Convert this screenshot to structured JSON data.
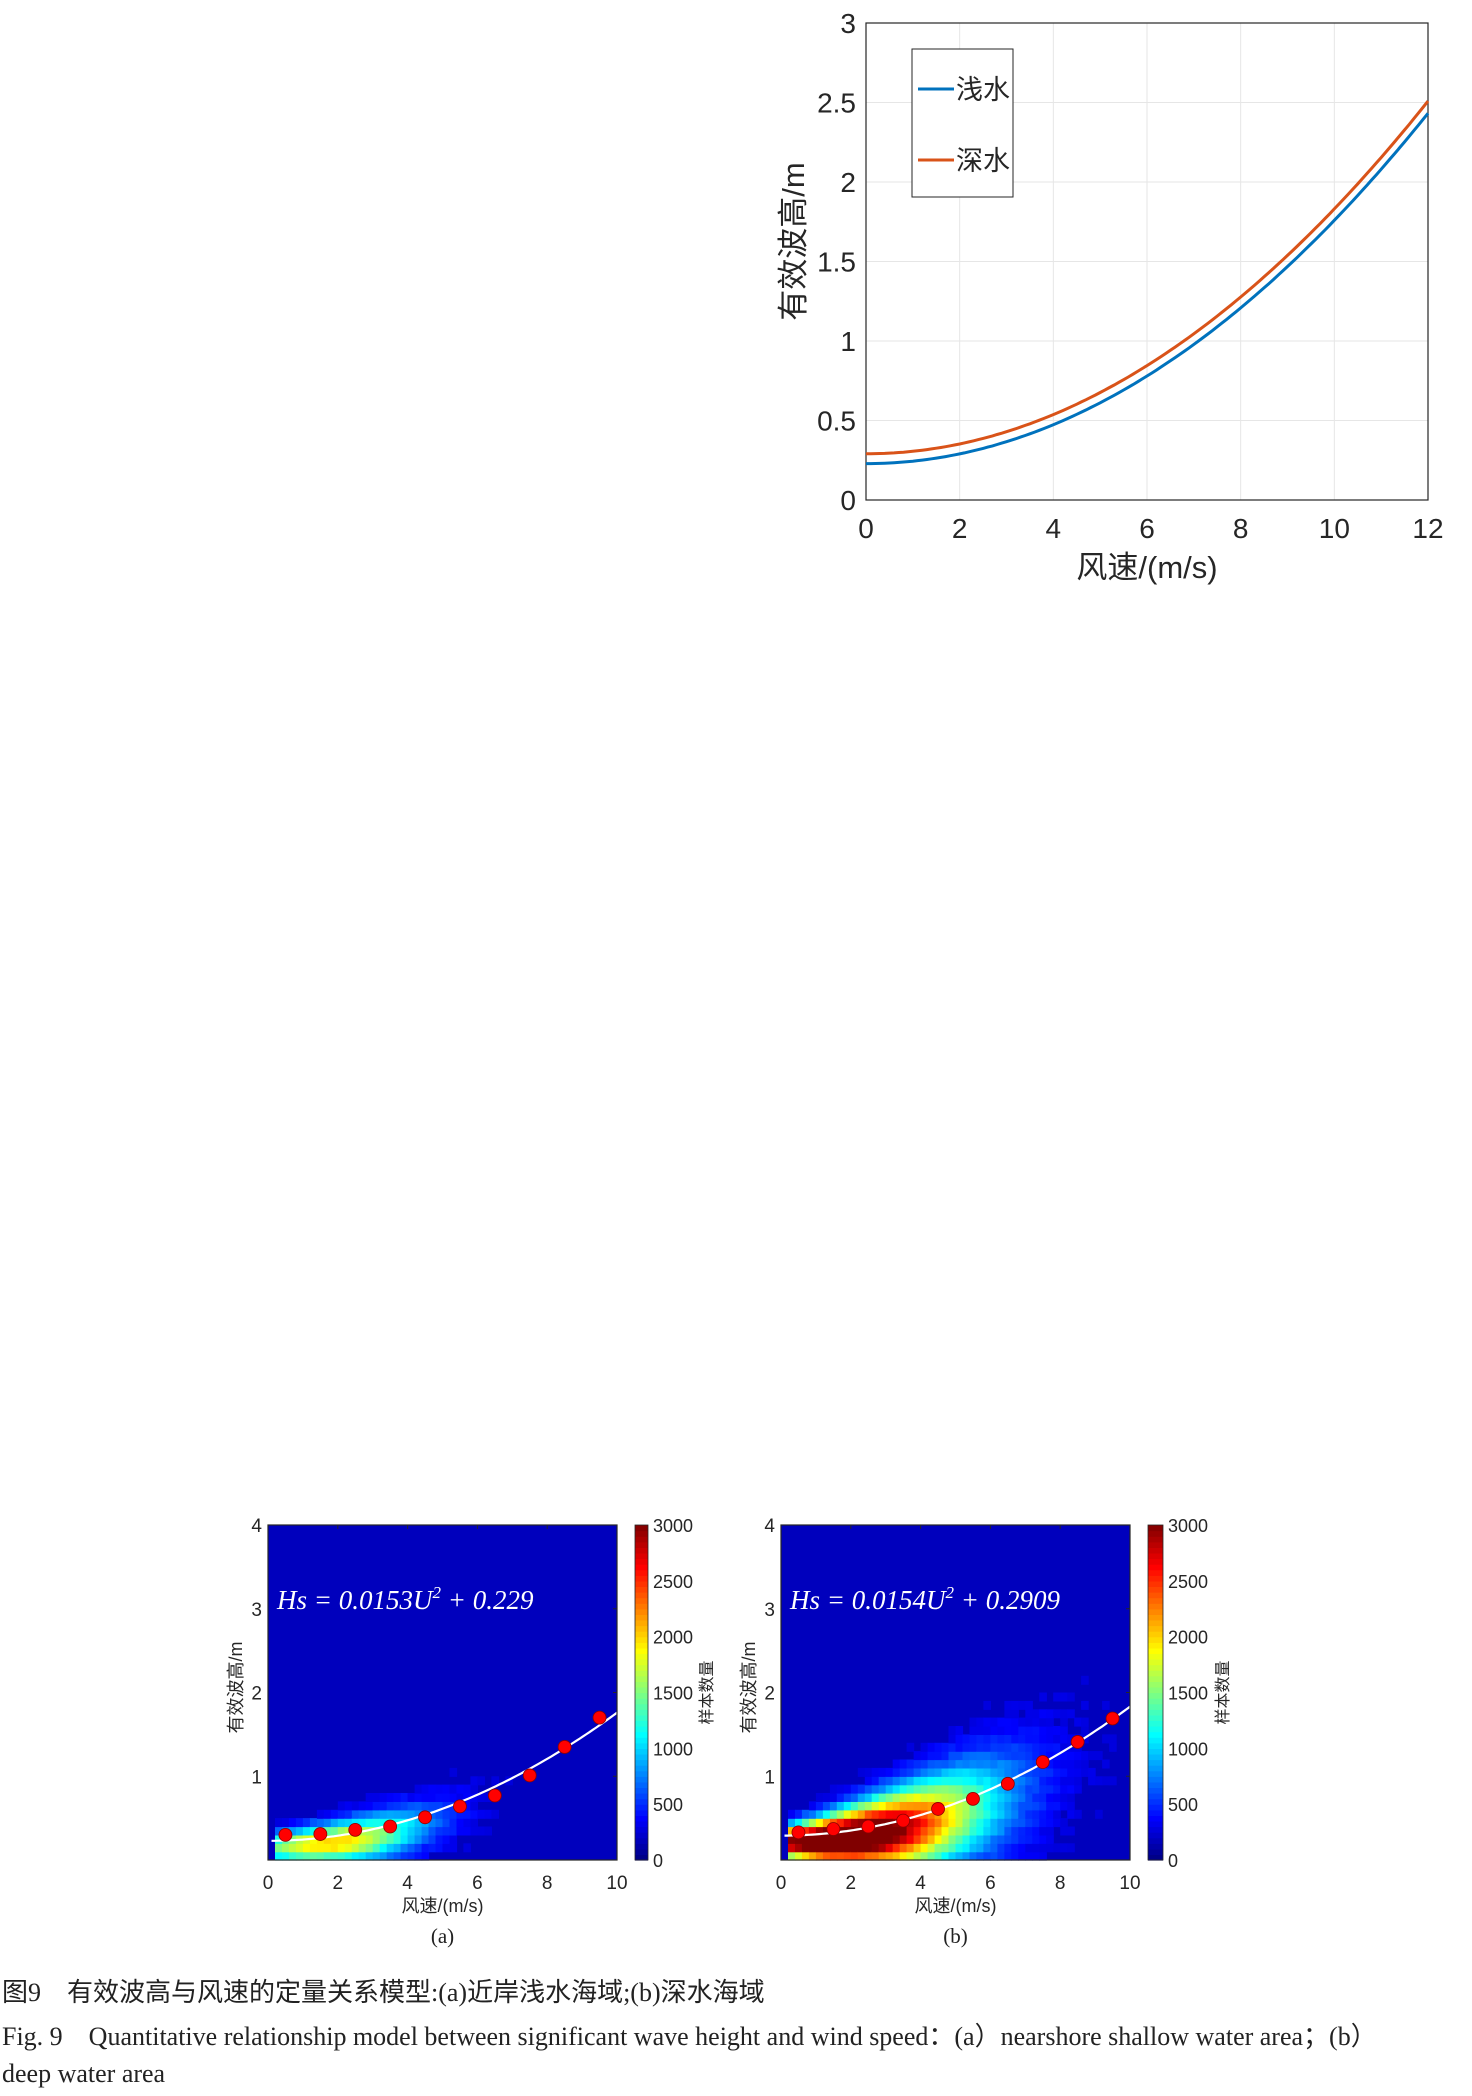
{
  "chart_data": [
    {
      "type": "line",
      "xlabel": "风速/(m/s)",
      "ylabel": "有效波高/m",
      "xlim": [
        0,
        12
      ],
      "ylim": [
        0,
        3
      ],
      "xticks": [
        "0",
        "2",
        "4",
        "6",
        "8",
        "10",
        "12"
      ],
      "yticks": [
        "0",
        "0.5",
        "1",
        "1.5",
        "2",
        "2.5",
        "3"
      ],
      "grid": true,
      "legend": "top-left",
      "series": [
        {
          "name": "浅水",
          "color": "#0072BD",
          "a": 0.0153,
          "b": 0.229,
          "x": [
            0,
            1,
            2,
            3,
            4,
            5,
            6,
            7,
            8,
            9,
            10,
            11,
            12
          ],
          "y": [
            0.229,
            0.244,
            0.29,
            0.367,
            0.474,
            0.612,
            0.78,
            0.979,
            1.208,
            1.468,
            1.759,
            2.08,
            2.432
          ]
        },
        {
          "name": "深水",
          "color": "#D95319",
          "a": 0.0154,
          "b": 0.2909,
          "x": [
            0,
            1,
            2,
            3,
            4,
            5,
            6,
            7,
            8,
            9,
            10,
            11,
            12
          ],
          "y": [
            0.291,
            0.306,
            0.352,
            0.43,
            0.537,
            0.676,
            0.845,
            1.046,
            1.277,
            1.538,
            1.831,
            2.154,
            2.509
          ]
        }
      ]
    },
    {
      "type": "heatmap",
      "panel": "(a)",
      "formula": {
        "lhs": "Hs = 0.0153U",
        "exp": "2",
        "rhs": " + 0.229"
      },
      "fit": {
        "a": 0.0153,
        "b": 0.229
      },
      "xlabel": "风速/(m/s)",
      "ylabel": "有效波高/m",
      "xlim": [
        0,
        10
      ],
      "ylim": [
        0,
        4
      ],
      "xticks": [
        "0",
        "2",
        "4",
        "6",
        "8",
        "10"
      ],
      "yticks": [
        "1",
        "2",
        "3",
        "4"
      ],
      "colorbar": {
        "label": "样本数量",
        "range": [
          0,
          3000
        ],
        "ticks": [
          "0",
          "500",
          "1000",
          "1500",
          "2000",
          "2500",
          "3000"
        ],
        "colormap": "jet"
      },
      "points": {
        "x": [
          0.5,
          1.5,
          2.5,
          3.5,
          4.5,
          5.5,
          6.5,
          7.5,
          8.5,
          9.5
        ],
        "y": [
          0.3,
          0.31,
          0.36,
          0.4,
          0.51,
          0.64,
          0.77,
          1.01,
          1.35,
          1.7
        ],
        "color": "#FF0000"
      }
    },
    {
      "type": "heatmap",
      "panel": "(b)",
      "formula": {
        "lhs": "Hs = 0.0154U",
        "exp": "2",
        "rhs": " + 0.2909"
      },
      "fit": {
        "a": 0.0154,
        "b": 0.2909
      },
      "xlabel": "风速/(m/s)",
      "ylabel": "有效波高/m",
      "xlim": [
        0,
        10
      ],
      "ylim": [
        0,
        4
      ],
      "xticks": [
        "0",
        "2",
        "4",
        "6",
        "8",
        "10"
      ],
      "yticks": [
        "1",
        "2",
        "3",
        "4"
      ],
      "colorbar": {
        "label": "样本数量",
        "range": [
          0,
          3000
        ],
        "ticks": [
          "0",
          "500",
          "1000",
          "1500",
          "2000",
          "2500",
          "3000"
        ],
        "colormap": "jet"
      },
      "points": {
        "x": [
          0.5,
          1.5,
          2.5,
          3.5,
          4.5,
          5.5,
          6.5,
          7.5,
          8.5,
          9.5
        ],
        "y": [
          0.33,
          0.37,
          0.4,
          0.47,
          0.61,
          0.73,
          0.91,
          1.17,
          1.41,
          1.69
        ],
        "color": "#FF0000"
      }
    }
  ],
  "caption": {
    "cn": "图9　有效波高与风速的定量关系模型:(a)近岸浅水海域;(b)深水海域",
    "en_line1": "Fig. 9　Quantitative relationship model between significant wave height and wind speed：(a）nearshore shallow water area；(b）",
    "en_line2": "deep water area"
  }
}
